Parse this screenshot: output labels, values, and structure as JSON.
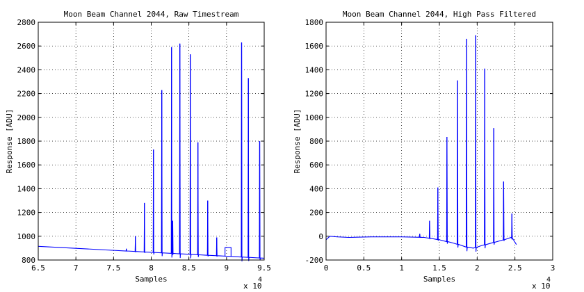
{
  "chart_data": [
    {
      "type": "line",
      "title": "Moon Beam Channel 2044, Raw Timestream",
      "xlabel": "Samples",
      "ylabel": "Response [ADU]",
      "x_exponent_label": "x 10",
      "x_exponent": "4",
      "xlim": [
        6.5,
        9.5
      ],
      "ylim": [
        800,
        2800
      ],
      "xticks": [
        "6.5",
        "7",
        "7.5",
        "8",
        "8.5",
        "9",
        "9.5"
      ],
      "yticks": [
        "800",
        "1000",
        "1200",
        "1400",
        "1600",
        "1800",
        "2000",
        "2200",
        "2400",
        "2600",
        "2800"
      ],
      "grid": true,
      "line_color": "#0000ff",
      "baseline": {
        "x": [
          6.5,
          9.5
        ],
        "y": [
          915,
          815
        ]
      },
      "spikes": [
        {
          "x": 7.67,
          "y": 895
        },
        {
          "x": 7.79,
          "y": 1000
        },
        {
          "x": 7.91,
          "y": 1280
        },
        {
          "x": 8.03,
          "y": 1730
        },
        {
          "x": 8.14,
          "y": 2230
        },
        {
          "x": 8.27,
          "y": 2590
        },
        {
          "x": 8.285,
          "y": 1130
        },
        {
          "x": 8.38,
          "y": 2620
        },
        {
          "x": 8.52,
          "y": 2530
        },
        {
          "x": 8.62,
          "y": 1790
        },
        {
          "x": 8.75,
          "y": 1300
        },
        {
          "x": 8.87,
          "y": 990
        },
        {
          "x": 9.2,
          "y": 2630
        },
        {
          "x": 9.29,
          "y": 2330
        },
        {
          "x": 9.44,
          "y": 1800
        }
      ],
      "step_segment": {
        "x": [
          8.98,
          9.06
        ],
        "y": 905
      }
    },
    {
      "type": "line",
      "title": "Moon Beam Channel 2044, High Pass Filtered",
      "xlabel": "Samples",
      "ylabel": "Response [ADU]",
      "x_exponent_label": "x 10",
      "x_exponent": "4",
      "xlim": [
        0,
        3
      ],
      "ylim": [
        -200,
        1800
      ],
      "xticks": [
        "0",
        "0.5",
        "1",
        "1.5",
        "2",
        "2.5",
        "3"
      ],
      "yticks": [
        "-200",
        "0",
        "200",
        "400",
        "600",
        "800",
        "1000",
        "1200",
        "1400",
        "1600",
        "1800"
      ],
      "grid": true,
      "line_color": "#0000ff",
      "baseline": {
        "x": [
          0,
          0.05,
          0.15,
          0.3,
          0.6,
          1.0,
          1.3,
          1.5,
          1.7,
          1.85,
          1.95,
          2.05,
          2.2,
          2.35,
          2.45,
          2.52
        ],
        "y": [
          -30,
          0,
          -5,
          -10,
          -5,
          -5,
          -10,
          -30,
          -60,
          -90,
          -100,
          -80,
          -55,
          -30,
          -10,
          -70
        ]
      },
      "spikes": [
        {
          "x": 1.24,
          "y": 20
        },
        {
          "x": 1.37,
          "y": 130
        },
        {
          "x": 1.48,
          "y": 410
        },
        {
          "x": 1.6,
          "y": 835
        },
        {
          "x": 1.74,
          "y": 1310
        },
        {
          "x": 1.86,
          "y": 1660
        },
        {
          "x": 1.98,
          "y": 1690
        },
        {
          "x": 2.1,
          "y": 1410
        },
        {
          "x": 2.22,
          "y": 910
        },
        {
          "x": 2.35,
          "y": 460
        },
        {
          "x": 2.46,
          "y": 190
        }
      ]
    }
  ]
}
